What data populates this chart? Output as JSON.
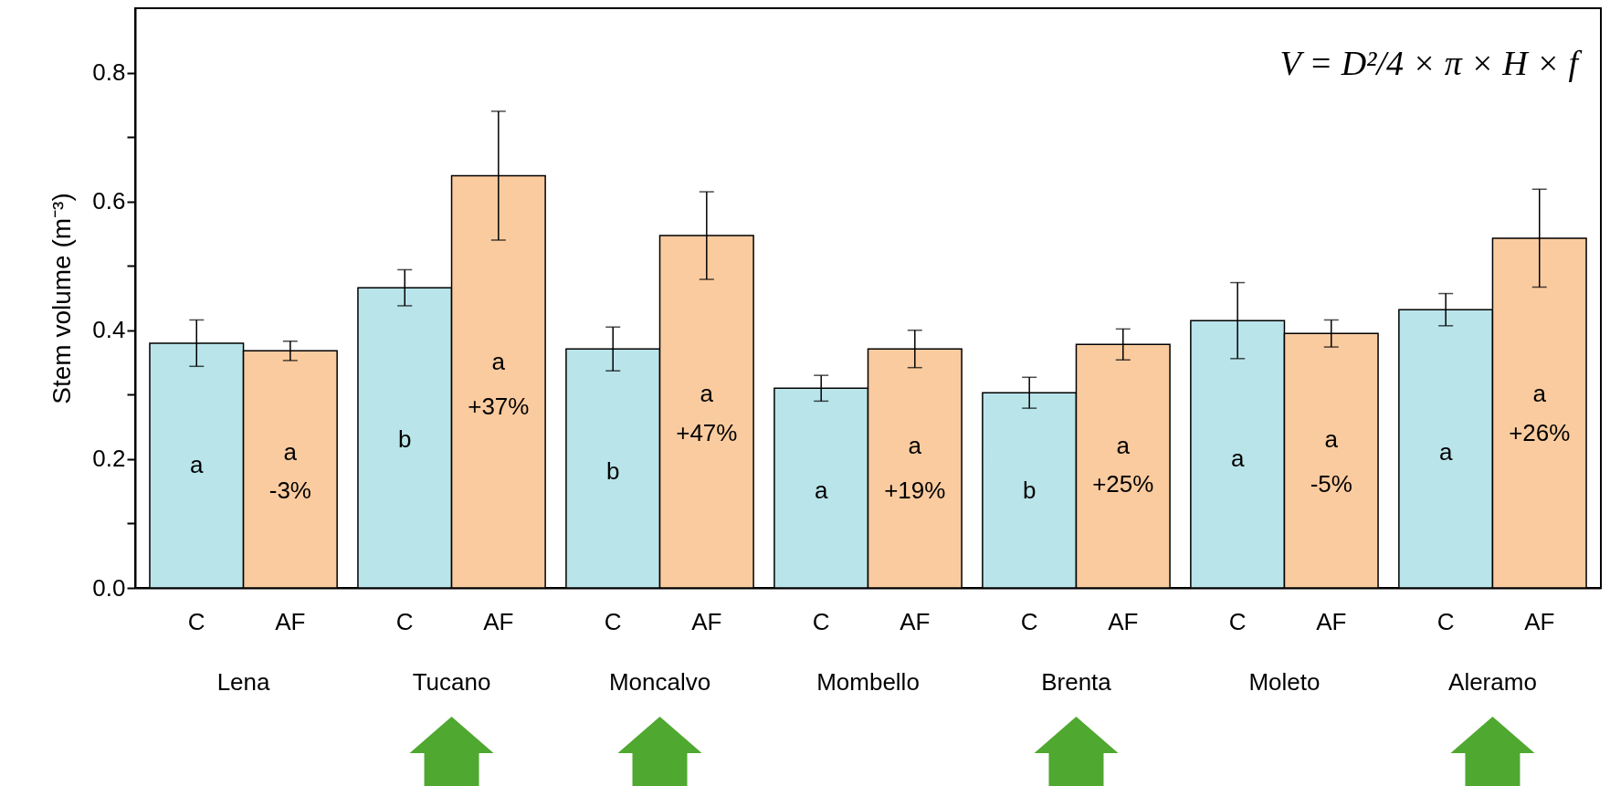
{
  "chart_data": {
    "type": "bar",
    "ylabel": "Stem volume (m⁻³)",
    "categories": [
      "Lena",
      "Tucano",
      "Moncalvo",
      "Mombello",
      "Brenta",
      "Moleto",
      "Aleramo"
    ],
    "series": [
      {
        "name": "C",
        "color": "#b9e4ea",
        "values": [
          0.38,
          0.466,
          0.371,
          0.31,
          0.303,
          0.415,
          0.432
        ],
        "errors": [
          0.036,
          0.028,
          0.034,
          0.02,
          0.024,
          0.059,
          0.025
        ]
      },
      {
        "name": "AF",
        "color": "#facb9f",
        "values": [
          0.368,
          0.64,
          0.547,
          0.371,
          0.378,
          0.395,
          0.543
        ],
        "errors": [
          0.015,
          0.1,
          0.068,
          0.029,
          0.024,
          0.021,
          0.076
        ]
      }
    ],
    "ylim": [
      0,
      0.9
    ],
    "yticks": [
      {
        "value": 0,
        "label": "0.0"
      },
      {
        "value": 0.1,
        "label": null
      },
      {
        "value": 0.2,
        "label": "0.2"
      },
      {
        "value": 0.3,
        "label": null
      },
      {
        "value": 0.4,
        "label": "0.4"
      },
      {
        "value": 0.5,
        "label": null
      },
      {
        "value": 0.6,
        "label": "0.6"
      },
      {
        "value": 0.7,
        "label": null
      },
      {
        "value": 0.8,
        "label": "0.8"
      }
    ],
    "annotations": [
      "V = D²/4 × π × H × f",
      {
        "text": "a",
        "x": "Lena",
        "y": 0.19
      },
      {
        "text": "a",
        "x": "Lena",
        "y": 0.21
      },
      {
        "text": "-3%",
        "x": "Lena",
        "y": 0.15
      },
      {
        "text": "b",
        "x": "Tucano",
        "y": 0.23
      },
      {
        "text": "a",
        "x": "Tucano",
        "y": 0.35
      },
      {
        "text": "+37%",
        "x": "Tucano",
        "y": 0.28
      },
      {
        "text": "b",
        "x": "Moncalvo",
        "y": 0.18
      },
      {
        "text": "a",
        "x": "Moncalvo",
        "y": 0.3
      },
      {
        "text": "+47%",
        "x": "Moncalvo",
        "y": 0.24
      },
      {
        "text": "a",
        "x": "Mombello",
        "y": 0.15
      },
      {
        "text": "a",
        "x": "Mombello",
        "y": 0.22
      },
      {
        "text": "+19%",
        "x": "Mombello",
        "y": 0.15
      },
      {
        "text": "b",
        "x": "Brenta",
        "y": 0.15
      },
      {
        "text": "a",
        "x": "Brenta",
        "y": 0.22
      },
      {
        "text": "+25%",
        "x": "Brenta",
        "y": 0.16
      },
      {
        "text": "a",
        "x": "Moleto",
        "y": 0.2
      },
      {
        "text": "a",
        "x": "Moleto",
        "y": 0.23
      },
      {
        "text": "-5%",
        "x": "Moleto",
        "y": 0.16
      },
      {
        "text": "a",
        "x": "Aleramo",
        "y": 0.21
      },
      {
        "text": "a",
        "x": "Aleramo",
        "y": 0.3
      },
      {
        "text": "+26%",
        "x": "Aleramo",
        "y": 0.24
      }
    ],
    "grid": false
  }
}
